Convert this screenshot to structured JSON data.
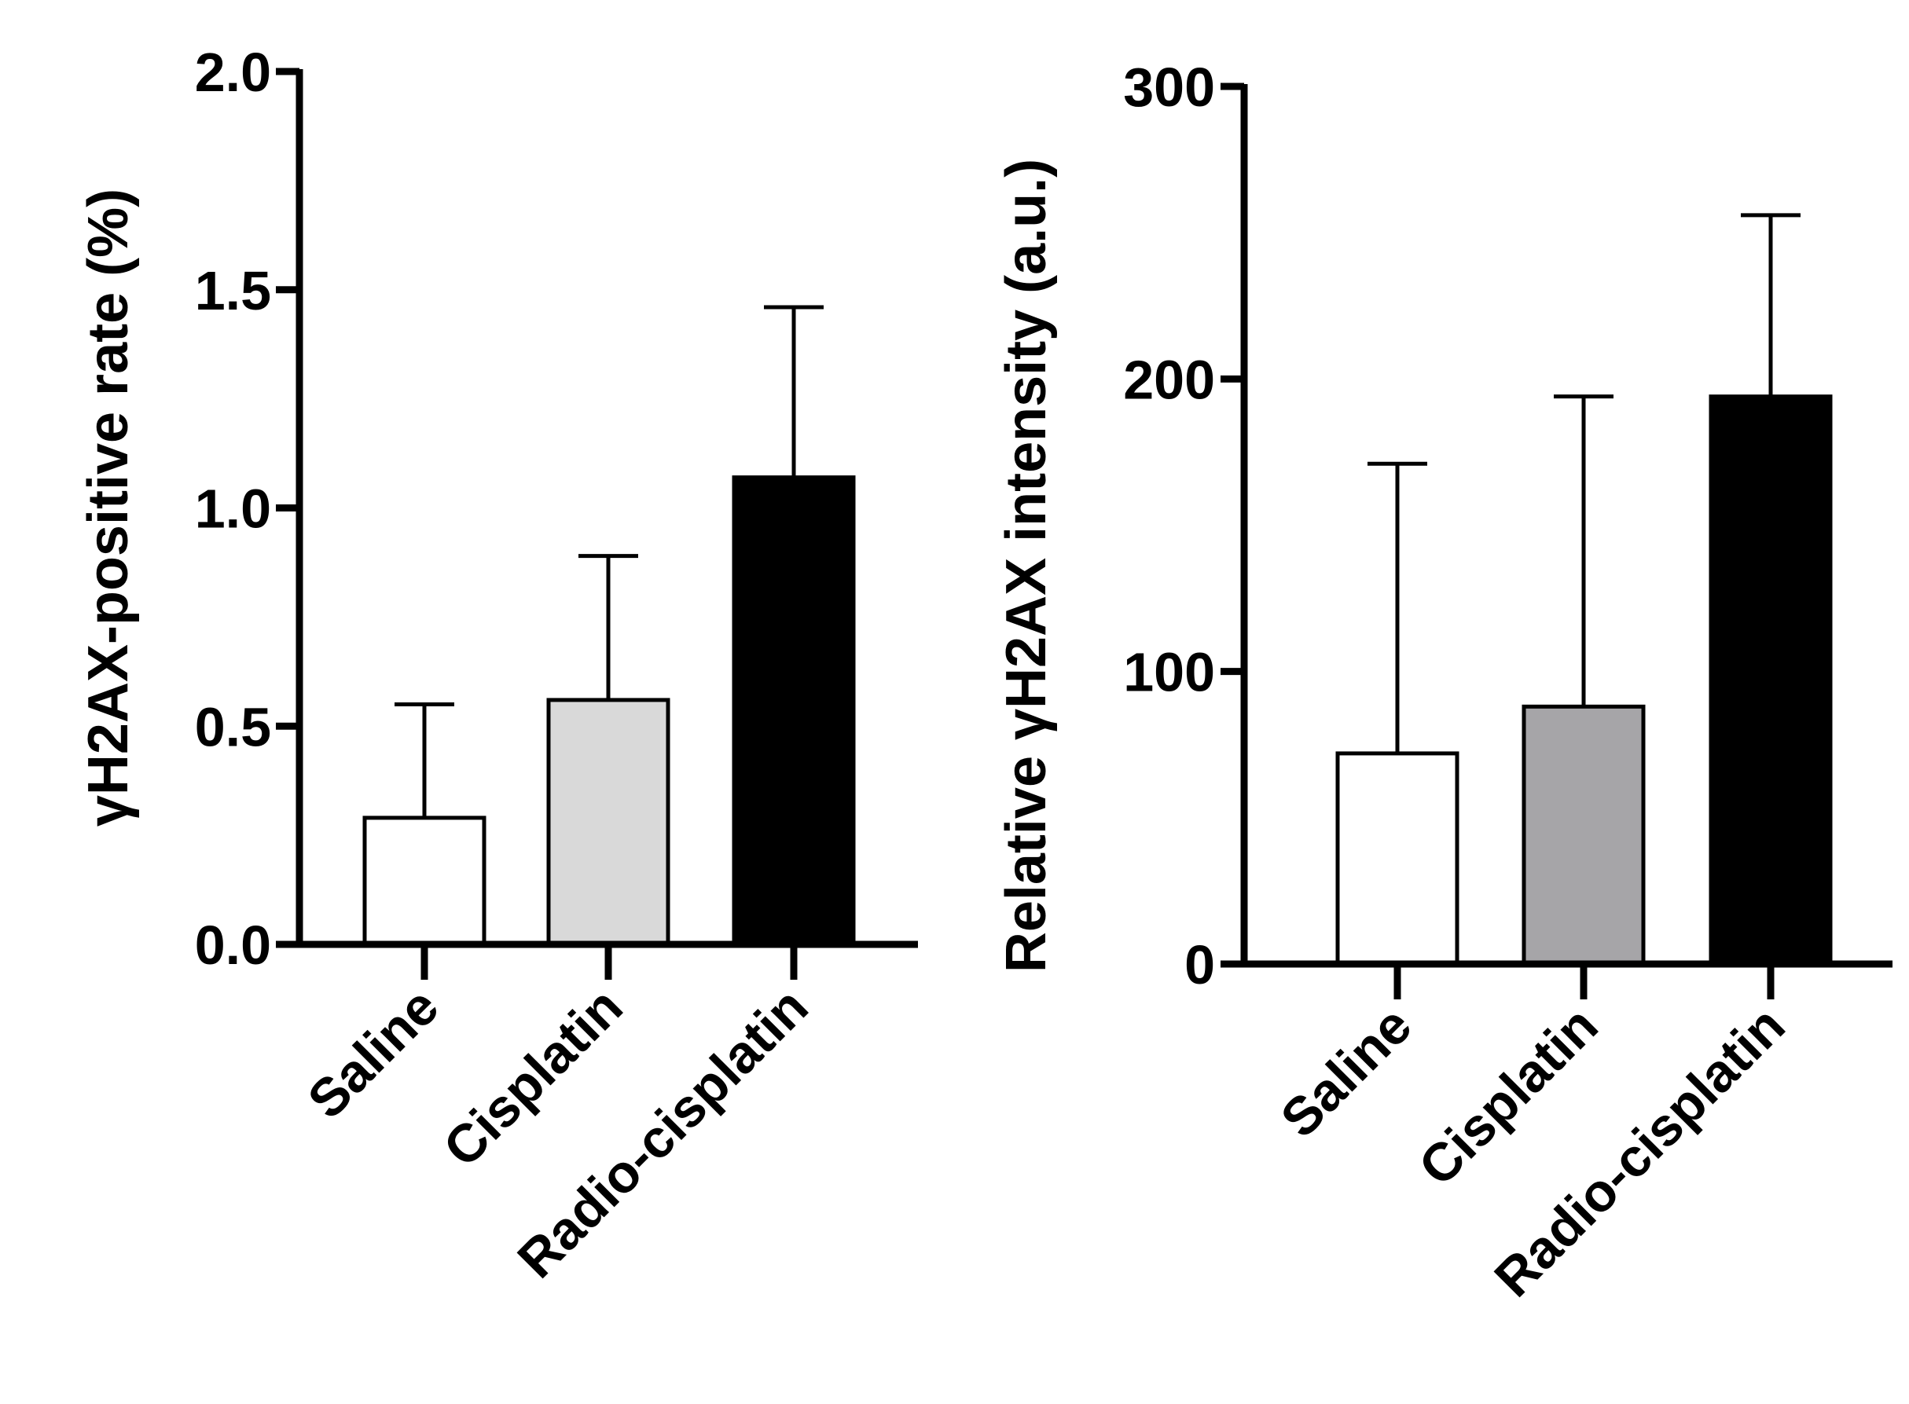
{
  "chart_data": [
    {
      "type": "bar",
      "title": "",
      "xlabel": "",
      "ylabel": "γH2AX-positive rate (%)",
      "categories": [
        "Saline",
        "Cisplatin",
        "Radio-cisplatin"
      ],
      "values": [
        0.29,
        0.56,
        1.07
      ],
      "error_upper": [
        0.55,
        0.89,
        1.46
      ],
      "bar_colors": [
        "#ffffff",
        "#d9d9d9",
        "#000000"
      ],
      "ylim": [
        0,
        2.0
      ],
      "yticks": [
        0.0,
        0.5,
        1.0,
        1.5,
        2.0
      ],
      "ytick_labels": [
        "0.0",
        "0.5",
        "1.0",
        "1.5",
        "2.0"
      ],
      "grid": false,
      "legend": "none"
    },
    {
      "type": "bar",
      "title": "",
      "xlabel": "",
      "ylabel": "Relative γH2AX intensity (a.u.)",
      "categories": [
        "Saline",
        "Cisplatin",
        "Radio-cisplatin"
      ],
      "values": [
        72,
        88,
        194
      ],
      "error_upper": [
        171,
        194,
        256
      ],
      "bar_colors": [
        "#ffffff",
        "#a6a5a8",
        "#000000"
      ],
      "ylim": [
        0,
        300
      ],
      "yticks": [
        0,
        100,
        200,
        300
      ],
      "ytick_labels": [
        "0",
        "100",
        "200",
        "300"
      ],
      "grid": false,
      "legend": "none"
    }
  ]
}
